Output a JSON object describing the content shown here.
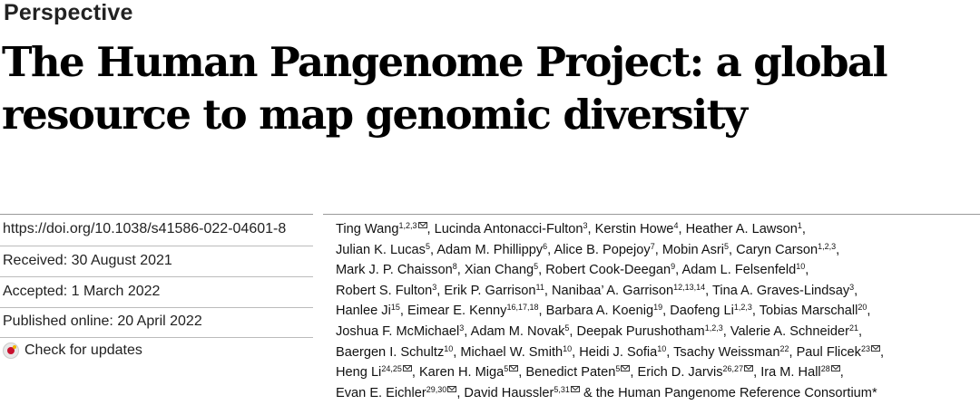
{
  "section_label": "Perspective",
  "title": "The Human Pangenome Project: a global resource to map genomic diversity",
  "meta": {
    "doi": "https://doi.org/10.1038/s41586-022-04601-8",
    "received": "Received: 30 August 2021",
    "accepted": "Accepted: 1 March 2022",
    "published": "Published online: 20 April 2022",
    "check_updates": "Check for updates"
  },
  "author_lines": [
    [
      {
        "name": "Ting Wang",
        "sup": "1,2,3",
        "mail": true,
        "sep": ", "
      },
      {
        "name": "Lucinda Antonacci-Fulton",
        "sup": "3",
        "sep": ", "
      },
      {
        "name": "Kerstin Howe",
        "sup": "4",
        "sep": ", "
      },
      {
        "name": "Heather A. Lawson",
        "sup": "1",
        "sep": ","
      }
    ],
    [
      {
        "name": "Julian K. Lucas",
        "sup": "5",
        "sep": ", "
      },
      {
        "name": "Adam M. Phillippy",
        "sup": "6",
        "sep": ", "
      },
      {
        "name": "Alice B. Popejoy",
        "sup": "7",
        "sep": ", "
      },
      {
        "name": "Mobin Asri",
        "sup": "5",
        "sep": ", "
      },
      {
        "name": "Caryn Carson",
        "sup": "1,2,3",
        "sep": ","
      }
    ],
    [
      {
        "name": "Mark J. P. Chaisson",
        "sup": "8",
        "sep": ", "
      },
      {
        "name": "Xian Chang",
        "sup": "5",
        "sep": ", "
      },
      {
        "name": "Robert Cook-Deegan",
        "sup": "9",
        "sep": ", "
      },
      {
        "name": "Adam L. Felsenfeld",
        "sup": "10",
        "sep": ","
      }
    ],
    [
      {
        "name": "Robert S. Fulton",
        "sup": "3",
        "sep": ", "
      },
      {
        "name": "Erik P. Garrison",
        "sup": "11",
        "sep": ", "
      },
      {
        "name": "Nanibaa’ A. Garrison",
        "sup": "12,13,14",
        "sep": ", "
      },
      {
        "name": "Tina A. Graves-Lindsay",
        "sup": "3",
        "sep": ","
      }
    ],
    [
      {
        "name": "Hanlee Ji",
        "sup": "15",
        "sep": ", "
      },
      {
        "name": "Eimear E. Kenny",
        "sup": "16,17,18",
        "sep": ", "
      },
      {
        "name": "Barbara A. Koenig",
        "sup": "19",
        "sep": ", "
      },
      {
        "name": "Daofeng Li",
        "sup": "1,2,3",
        "sep": ", "
      },
      {
        "name": "Tobias Marschall",
        "sup": "20",
        "sep": ","
      }
    ],
    [
      {
        "name": "Joshua F. McMichael",
        "sup": "3",
        "sep": ", "
      },
      {
        "name": "Adam M. Novak",
        "sup": "5",
        "sep": ", "
      },
      {
        "name": "Deepak Purushotham",
        "sup": "1,2,3",
        "sep": ", "
      },
      {
        "name": "Valerie A. Schneider",
        "sup": "21",
        "sep": ","
      }
    ],
    [
      {
        "name": "Baergen I. Schultz",
        "sup": "10",
        "sep": ", "
      },
      {
        "name": "Michael W. Smith",
        "sup": "10",
        "sep": ", "
      },
      {
        "name": "Heidi J. Sofia",
        "sup": "10",
        "sep": ", "
      },
      {
        "name": "Tsachy Weissman",
        "sup": "22",
        "sep": ", "
      },
      {
        "name": "Paul Flicek",
        "sup": "23",
        "mail": true,
        "sep": ","
      }
    ],
    [
      {
        "name": "Heng Li",
        "sup": "24,25",
        "mail": true,
        "sep": ", "
      },
      {
        "name": "Karen H. Miga",
        "sup": "5",
        "mail": true,
        "sep": ", "
      },
      {
        "name": "Benedict Paten",
        "sup": "5",
        "mail": true,
        "sep": ", "
      },
      {
        "name": "Erich D. Jarvis",
        "sup": "26,27",
        "mail": true,
        "sep": ", "
      },
      {
        "name": "Ira M. Hall",
        "sup": "28",
        "mail": true,
        "sep": ","
      }
    ],
    [
      {
        "name": "Evan E. Eichler",
        "sup": "29,30",
        "mail": true,
        "sep": ", "
      },
      {
        "name": "David Haussler",
        "sup": "5,31",
        "mail": true,
        "sep": " "
      },
      {
        "name": "& the Human Pangenome Reference Consortium*",
        "sup": "",
        "sep": ""
      }
    ]
  ]
}
